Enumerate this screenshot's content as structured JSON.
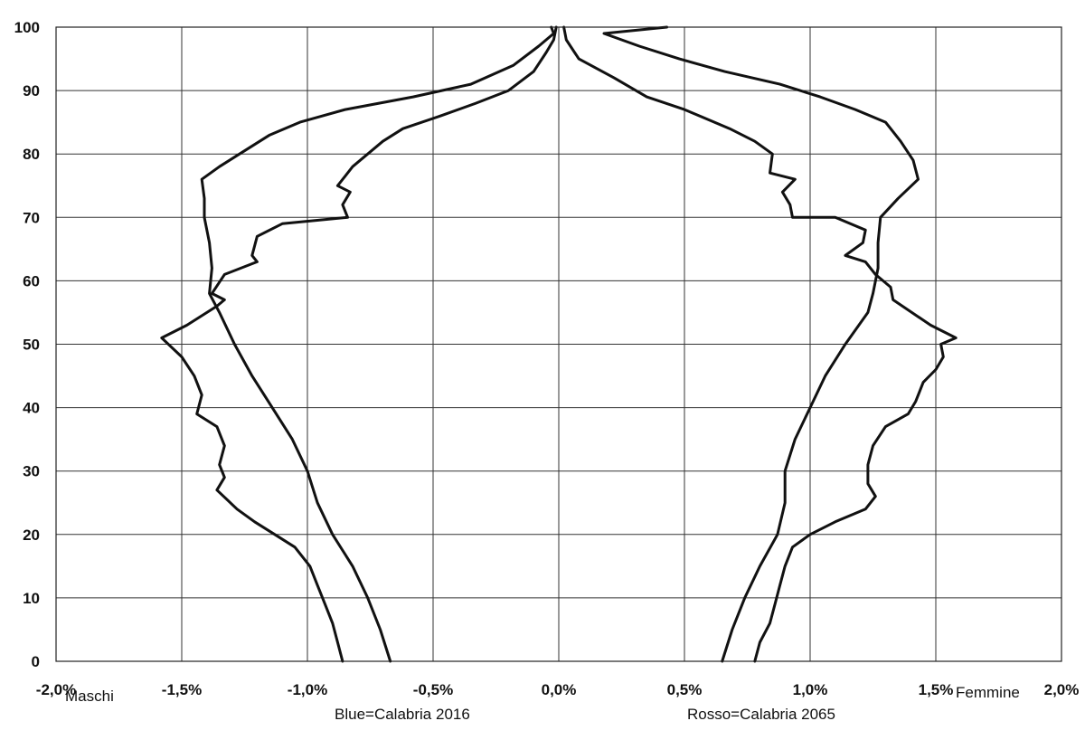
{
  "chart_data": {
    "type": "line",
    "x_ticks": [
      "-2,0%",
      "-1,5%",
      "-1,0%",
      "-0,5%",
      "0,0%",
      "0,5%",
      "1,0%",
      "1,5%",
      "2,0%"
    ],
    "x_tick_values": [
      -2.0,
      -1.5,
      -1.0,
      -0.5,
      0.0,
      0.5,
      1.0,
      1.5,
      2.0
    ],
    "y_ticks": [
      "0",
      "10",
      "20",
      "30",
      "40",
      "50",
      "60",
      "70",
      "80",
      "90",
      "100"
    ],
    "y_tick_values": [
      0,
      10,
      20,
      30,
      40,
      50,
      60,
      70,
      80,
      90,
      100
    ],
    "xlim": [
      -2.0,
      2.0
    ],
    "ylim": [
      0,
      100
    ],
    "grid": true,
    "annotations": {
      "left": "Maschi",
      "right": "Femmine",
      "blue": "Blue=Calabria  2016",
      "red": "Rosso=Calabria 2065"
    },
    "series": [
      {
        "line_color": "#111111",
        "points": [
          [
            -0.86,
            0
          ],
          [
            -0.88,
            3
          ],
          [
            -0.9,
            6
          ],
          [
            -0.93,
            9
          ],
          [
            -0.96,
            12
          ],
          [
            -0.99,
            15
          ],
          [
            -1.05,
            18
          ],
          [
            -1.13,
            20
          ],
          [
            -1.21,
            22
          ],
          [
            -1.28,
            24
          ],
          [
            -1.36,
            27
          ],
          [
            -1.33,
            29
          ],
          [
            -1.35,
            31
          ],
          [
            -1.33,
            34
          ],
          [
            -1.36,
            37
          ],
          [
            -1.44,
            39
          ],
          [
            -1.42,
            42
          ],
          [
            -1.45,
            45
          ],
          [
            -1.5,
            48
          ],
          [
            -1.58,
            51
          ],
          [
            -1.48,
            53
          ],
          [
            -1.36,
            56
          ],
          [
            -1.33,
            57
          ],
          [
            -1.38,
            58
          ],
          [
            -1.33,
            61
          ],
          [
            -1.2,
            63
          ],
          [
            -1.22,
            64
          ],
          [
            -1.2,
            67
          ],
          [
            -1.1,
            69
          ],
          [
            -0.84,
            70
          ],
          [
            -0.86,
            72
          ],
          [
            -0.83,
            74
          ],
          [
            -0.88,
            75
          ],
          [
            -0.82,
            78
          ],
          [
            -0.76,
            80
          ],
          [
            -0.7,
            82
          ],
          [
            -0.62,
            84
          ],
          [
            -0.47,
            86
          ],
          [
            -0.33,
            88
          ],
          [
            -0.2,
            90
          ],
          [
            -0.1,
            93
          ],
          [
            -0.05,
            96
          ],
          [
            -0.02,
            98
          ],
          [
            -0.01,
            100
          ]
        ]
      },
      {
        "line_color": "#111111",
        "points": [
          [
            -0.67,
            0
          ],
          [
            -0.71,
            5
          ],
          [
            -0.76,
            10
          ],
          [
            -0.82,
            15
          ],
          [
            -0.9,
            20
          ],
          [
            -0.96,
            25
          ],
          [
            -1.0,
            30
          ],
          [
            -1.06,
            35
          ],
          [
            -1.14,
            40
          ],
          [
            -1.22,
            45
          ],
          [
            -1.29,
            50
          ],
          [
            -1.35,
            55
          ],
          [
            -1.39,
            58
          ],
          [
            -1.38,
            62
          ],
          [
            -1.39,
            66
          ],
          [
            -1.41,
            70
          ],
          [
            -1.41,
            73
          ],
          [
            -1.42,
            76
          ],
          [
            -1.35,
            78
          ],
          [
            -1.27,
            80
          ],
          [
            -1.15,
            83
          ],
          [
            -1.03,
            85
          ],
          [
            -0.85,
            87
          ],
          [
            -0.58,
            89
          ],
          [
            -0.35,
            91
          ],
          [
            -0.18,
            94
          ],
          [
            -0.08,
            97
          ],
          [
            -0.02,
            99
          ],
          [
            -0.03,
            100
          ]
        ]
      },
      {
        "line_color": "#111111",
        "points": [
          [
            0.78,
            0
          ],
          [
            0.8,
            3
          ],
          [
            0.84,
            6
          ],
          [
            0.86,
            9
          ],
          [
            0.88,
            12
          ],
          [
            0.9,
            15
          ],
          [
            0.93,
            18
          ],
          [
            1.0,
            20
          ],
          [
            1.1,
            22
          ],
          [
            1.22,
            24
          ],
          [
            1.26,
            26
          ],
          [
            1.23,
            28
          ],
          [
            1.23,
            31
          ],
          [
            1.25,
            34
          ],
          [
            1.3,
            37
          ],
          [
            1.39,
            39
          ],
          [
            1.42,
            41
          ],
          [
            1.45,
            44
          ],
          [
            1.5,
            46
          ],
          [
            1.53,
            48
          ],
          [
            1.52,
            50
          ],
          [
            1.58,
            51
          ],
          [
            1.48,
            53
          ],
          [
            1.33,
            57
          ],
          [
            1.32,
            59
          ],
          [
            1.26,
            61
          ],
          [
            1.22,
            63
          ],
          [
            1.14,
            64
          ],
          [
            1.21,
            66
          ],
          [
            1.22,
            68
          ],
          [
            1.1,
            70
          ],
          [
            0.93,
            70
          ],
          [
            0.92,
            72
          ],
          [
            0.89,
            74
          ],
          [
            0.94,
            76
          ],
          [
            0.84,
            77
          ],
          [
            0.85,
            80
          ],
          [
            0.78,
            82
          ],
          [
            0.68,
            84
          ],
          [
            0.5,
            87
          ],
          [
            0.35,
            89
          ],
          [
            0.22,
            92
          ],
          [
            0.08,
            95
          ],
          [
            0.03,
            98
          ],
          [
            0.02,
            100
          ]
        ]
      },
      {
        "line_color": "#111111",
        "points": [
          [
            0.65,
            0
          ],
          [
            0.69,
            5
          ],
          [
            0.74,
            10
          ],
          [
            0.8,
            15
          ],
          [
            0.87,
            20
          ],
          [
            0.9,
            25
          ],
          [
            0.9,
            30
          ],
          [
            0.94,
            35
          ],
          [
            1.0,
            40
          ],
          [
            1.06,
            45
          ],
          [
            1.14,
            50
          ],
          [
            1.23,
            55
          ],
          [
            1.25,
            58
          ],
          [
            1.27,
            62
          ],
          [
            1.27,
            66
          ],
          [
            1.28,
            70
          ],
          [
            1.35,
            73
          ],
          [
            1.43,
            76
          ],
          [
            1.41,
            79
          ],
          [
            1.36,
            82
          ],
          [
            1.3,
            85
          ],
          [
            1.18,
            87
          ],
          [
            1.04,
            89
          ],
          [
            0.88,
            91
          ],
          [
            0.66,
            93
          ],
          [
            0.48,
            95
          ],
          [
            0.32,
            97
          ],
          [
            0.18,
            99
          ],
          [
            0.43,
            100
          ]
        ]
      }
    ]
  }
}
